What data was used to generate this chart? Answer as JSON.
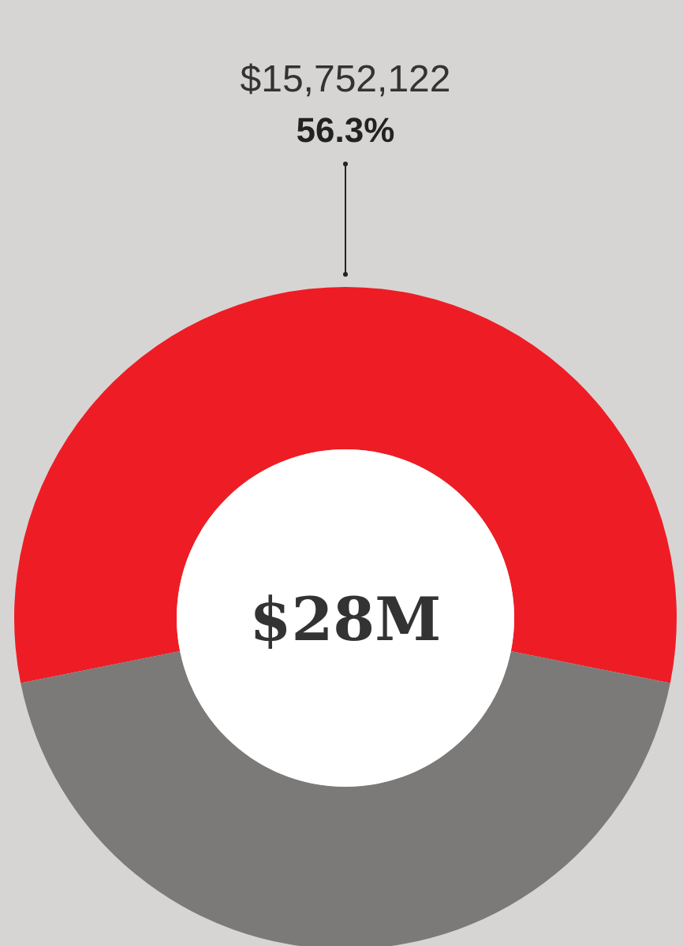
{
  "chart_data": {
    "type": "donut",
    "categories": [
      null,
      null
    ],
    "values": [
      56.3,
      43.7
    ],
    "colors": [
      "#ee1d25",
      "#7c7a78"
    ],
    "value_labels": [
      "56.3%",
      null
    ],
    "annotations": [
      "$15,752,122",
      "$28M"
    ]
  }
}
